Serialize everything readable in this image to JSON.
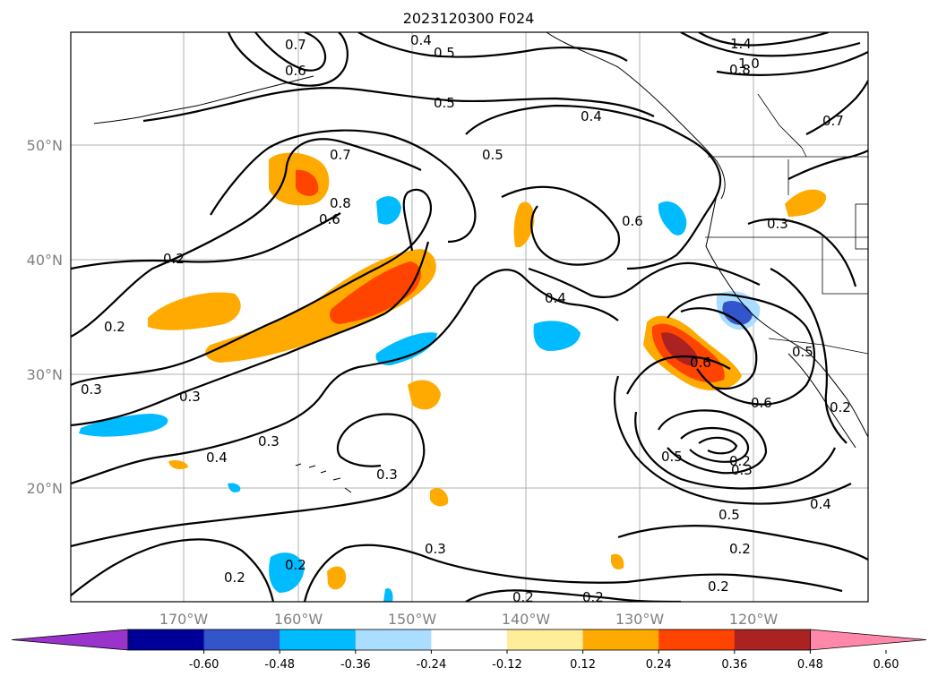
{
  "title": "2023120300 F024",
  "lat_labels": [
    "50°N",
    "40°N",
    "30°N",
    "20°N"
  ],
  "lon_labels": [
    "170°W",
    "160°W",
    "150°W",
    "140°W",
    "130°W",
    "120°W"
  ],
  "colorbar": {
    "ticks": [
      "-0.60",
      "-0.48",
      "-0.36",
      "-0.24",
      "-0.12",
      "0.12",
      "0.24",
      "0.36",
      "0.48",
      "0.60"
    ],
    "colors": [
      "#9933cc",
      "#000099",
      "#3355cc",
      "#00bbff",
      "#aaddff",
      "#ffffff",
      "#ffee99",
      "#ffaa00",
      "#ff4400",
      "#aa2222",
      "#ff88aa"
    ]
  },
  "contour_labels": [
    "0.7",
    "0.4",
    "0.5",
    "0.6",
    "0.5",
    "0.4",
    "1.4",
    "1.0",
    "0.8",
    "0.7",
    "0.5",
    "0.7",
    "0.8",
    "0.6",
    "0.6",
    "0.3",
    "0.2",
    "0.4",
    "0.2",
    "0.6",
    "0.3",
    "0.5",
    "0.3",
    "0.6",
    "0.3",
    "0.4",
    "0.3",
    "0.2",
    "0.5",
    "0.3",
    "0.2",
    "0.5",
    "0.4",
    "0.2",
    "0.3",
    "0.2",
    "0.2",
    "0.2",
    "0.2",
    "0.2"
  ]
}
